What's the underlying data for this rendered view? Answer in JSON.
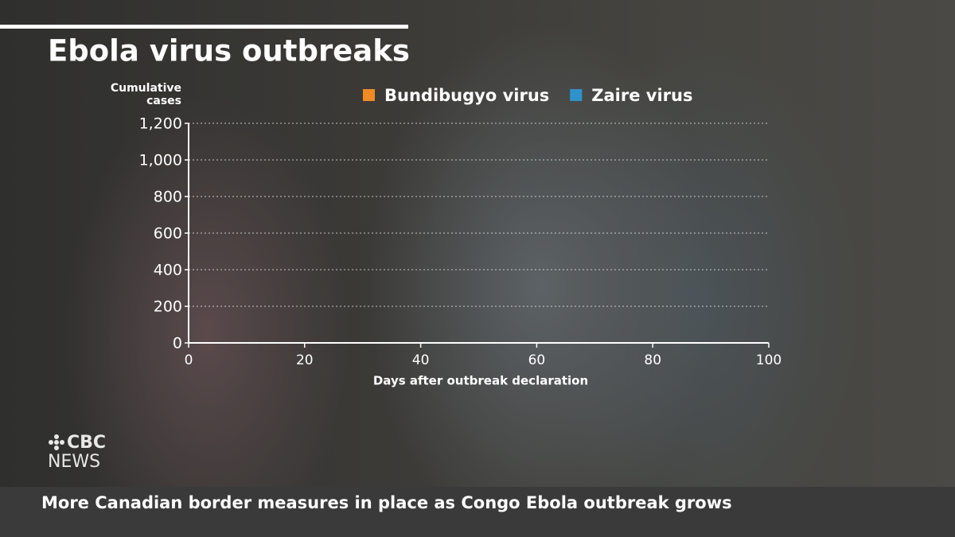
{
  "chart_data": {
    "type": "line",
    "title": "Ebola virus outbreaks",
    "y_label": "Cumulative cases",
    "x_label": "Days after outbreak declaration",
    "x": [],
    "series": [
      {
        "name": "Bundibugyo virus",
        "color": "#f08a24",
        "values": []
      },
      {
        "name": "Zaire virus",
        "color": "#2e93cc",
        "values": []
      }
    ],
    "xlim": [
      0,
      100
    ],
    "xticks": [
      0,
      20,
      40,
      60,
      80,
      100
    ],
    "ylim": [
      0,
      1200
    ],
    "yticks": [
      0,
      200,
      400,
      600,
      800,
      {
        "value": 1000,
        "label": "1,000"
      },
      {
        "value": 1200,
        "label": "1,200"
      }
    ],
    "grid": true
  },
  "logo": {
    "line1": "CBC",
    "line2": "NEWS"
  },
  "ticker": "More Canadian border measures in place as Congo Ebola outbreak grows"
}
